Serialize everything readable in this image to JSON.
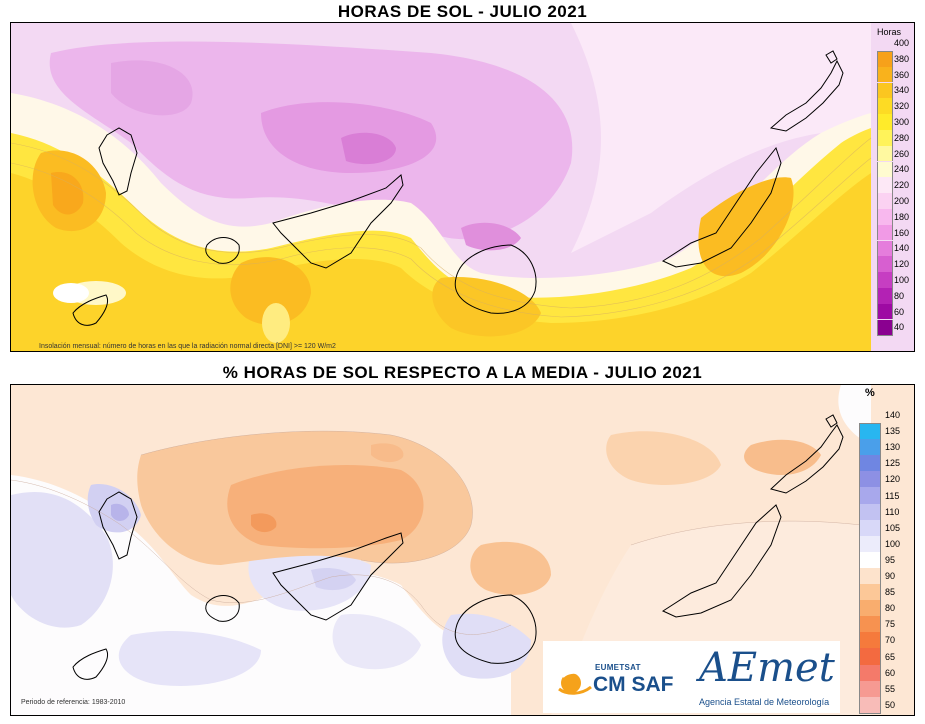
{
  "titles": {
    "top": "HORAS DE SOL - JULIO 2021",
    "bottom": "% HORAS DE SOL RESPECTO A LA MEDIA - JULIO 2021"
  },
  "top_map": {
    "note": "Insolación mensual: número de horas en las que la radiación normal directa [DNI] >= 120 W/m2",
    "legend_unit": "Horas",
    "legend_labels": [
      "400",
      "380",
      "360",
      "340",
      "320",
      "300",
      "280",
      "260",
      "240",
      "220",
      "200",
      "180",
      "160",
      "140",
      "120",
      "100",
      "80",
      "60",
      "40"
    ],
    "legend_colors": [
      "#f7a11a",
      "#f9b21c",
      "#fbc620",
      "#fddb24",
      "#ffeb2a",
      "#fff35a",
      "#fff9a0",
      "#fffbd0",
      "#fde8f6",
      "#fbd2f2",
      "#f8b8ee",
      "#f19ae6",
      "#e57ddc",
      "#d75fd0",
      "#c63ec2",
      "#b322b4",
      "#9e0aa3",
      "#8a0090"
    ]
  },
  "bottom_map": {
    "note": "Periodo de referencia: 1983-2010",
    "legend_unit": "%",
    "legend_labels": [
      "140",
      "135",
      "130",
      "125",
      "120",
      "115",
      "110",
      "105",
      "100",
      "95",
      "90",
      "85",
      "80",
      "75",
      "70",
      "65",
      "60",
      "55",
      "50"
    ],
    "legend_colors": [
      "#28b6f0",
      "#4a9fea",
      "#6f86e2",
      "#8d90e4",
      "#a8a8ec",
      "#c2c2f2",
      "#d8d8f8",
      "#ececfb",
      "#ffffff",
      "#fde3cc",
      "#fcc898",
      "#f9ad6e",
      "#f79250",
      "#f57a3c",
      "#f36a40",
      "#f47a6a",
      "#f69a92",
      "#f8bcb8"
    ]
  },
  "logos": {
    "eumetsat": "EUMETSAT",
    "cmsaf": "CM SAF",
    "aemet": "AEmet",
    "aemet_sub": "Agencia Estatal de Meteorología"
  }
}
